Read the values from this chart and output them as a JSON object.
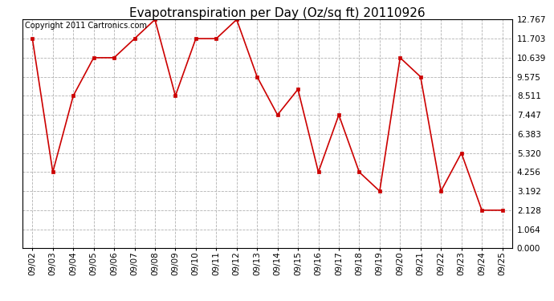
{
  "title": "Evapotranspiration per Day (Oz/sq ft) 20110926",
  "copyright": "Copyright 2011 Cartronics.com",
  "dates": [
    "09/02",
    "09/03",
    "09/04",
    "09/05",
    "09/06",
    "09/07",
    "09/08",
    "09/09",
    "09/10",
    "09/11",
    "09/12",
    "09/13",
    "09/14",
    "09/15",
    "09/16",
    "09/17",
    "09/18",
    "09/19",
    "09/20",
    "09/21",
    "09/22",
    "09/23",
    "09/24",
    "09/25"
  ],
  "values": [
    11.703,
    4.256,
    8.511,
    10.639,
    10.639,
    11.703,
    12.767,
    8.511,
    11.703,
    11.703,
    12.767,
    9.575,
    7.447,
    8.875,
    4.256,
    7.447,
    4.256,
    3.192,
    10.639,
    9.575,
    3.192,
    5.32,
    2.128,
    2.128
  ],
  "line_color": "#cc0000",
  "marker_color": "#cc0000",
  "bg_color": "#ffffff",
  "grid_color": "#aaaaaa",
  "ylim": [
    0.0,
    12.767
  ],
  "yticks": [
    0.0,
    1.064,
    2.128,
    3.192,
    4.256,
    5.32,
    6.383,
    7.447,
    8.511,
    9.575,
    10.639,
    11.703,
    12.767
  ],
  "title_fontsize": 11,
  "copyright_fontsize": 7,
  "tick_fontsize": 7.5
}
